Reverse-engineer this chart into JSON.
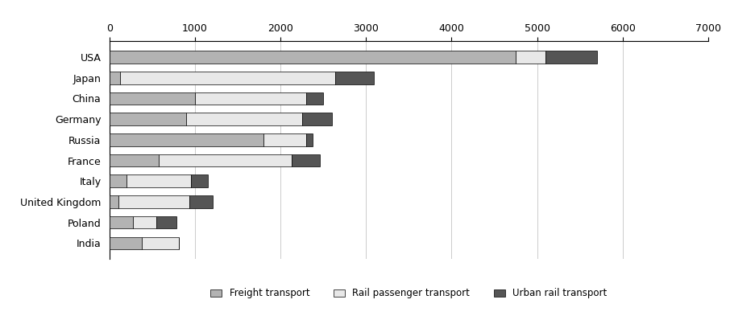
{
  "countries": [
    "USA",
    "Japan",
    "China",
    "Germany",
    "Russia",
    "France",
    "Italy",
    "United Kingdom",
    "Poland",
    "India"
  ],
  "freight_transport": [
    4750,
    120,
    1000,
    900,
    1800,
    580,
    200,
    100,
    270,
    380
  ],
  "rail_passenger": [
    350,
    2520,
    1300,
    1350,
    500,
    1550,
    750,
    830,
    280,
    430
  ],
  "urban_rail": [
    600,
    450,
    200,
    350,
    80,
    330,
    200,
    280,
    230,
    0
  ],
  "color_freight": "#b3b3b3",
  "color_rail_passenger": "#e8e8e8",
  "color_urban_rail": "#555555",
  "xlim": [
    0,
    7000
  ],
  "xticks": [
    0,
    1000,
    2000,
    3000,
    4000,
    5000,
    6000,
    7000
  ],
  "legend_labels": [
    "Freight transport",
    "Rail passenger transport",
    "Urban rail transport"
  ],
  "bar_height": 0.6
}
